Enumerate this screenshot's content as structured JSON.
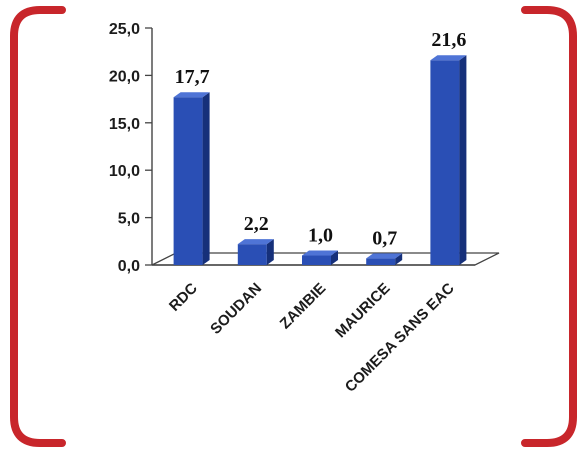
{
  "colors": {
    "bracket": "#c8262b",
    "bar_front": "#2a4fb5",
    "bar_side": "#16307a",
    "bar_top": "#4f74d6",
    "axis": "#444444",
    "floor": "#ffffff"
  },
  "chart_data": {
    "type": "bar",
    "three_d": true,
    "categories": [
      "RDC",
      "SOUDAN",
      "ZAMBIE",
      "MAURICE",
      "COMESA SANS EAC"
    ],
    "values": [
      17.7,
      2.2,
      1.0,
      0.7,
      21.6
    ],
    "value_labels": [
      "17,7",
      "2,2",
      "1,0",
      "0,7",
      "21,6"
    ],
    "y_ticks": [
      0,
      5,
      10,
      15,
      20,
      25
    ],
    "y_tick_labels": [
      "0,0",
      "5,0",
      "10,0",
      "15,0",
      "20,0",
      "25,0"
    ],
    "ylim": [
      0,
      25
    ],
    "title": "",
    "xlabel": "",
    "ylabel": "",
    "grid": false,
    "legend": "none"
  }
}
